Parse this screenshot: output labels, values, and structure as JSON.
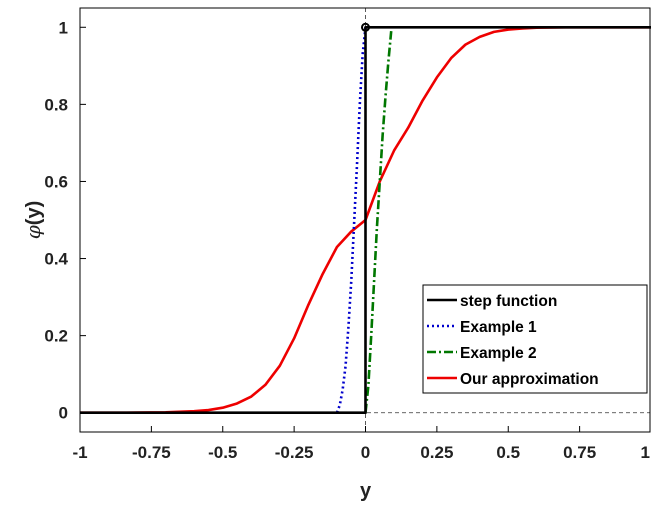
{
  "chart_data": {
    "type": "line",
    "xlabel": "y",
    "ylabel_symbol": "φ",
    "ylabel_arg": "(y)",
    "xlim": [
      -1,
      1
    ],
    "ylim": [
      -0.05,
      1.05
    ],
    "x_ticks": [
      -1,
      -0.75,
      -0.5,
      -0.25,
      0,
      0.25,
      0.5,
      0.75,
      1
    ],
    "x_tick_labels": [
      "-1",
      "-0.75",
      "-0.5",
      "-0.25",
      "0",
      "0.25",
      "0.5",
      "0.75",
      "1"
    ],
    "y_ticks": [
      0,
      0.2,
      0.4,
      0.6,
      0.8,
      1
    ],
    "y_tick_labels": [
      "0",
      "0.2",
      "0.4",
      "0.6",
      "0.8",
      "1"
    ],
    "grid": false,
    "legend_position": "bottom-right",
    "reference_lines": [
      {
        "orientation": "vertical",
        "value": 0,
        "style": "dashed",
        "color": "#333333"
      },
      {
        "orientation": "horizontal",
        "value": 0,
        "style": "dashed",
        "color": "#333333"
      }
    ],
    "series": [
      {
        "name": "step function",
        "color": "#000000",
        "style": "solid",
        "x": [
          -1,
          0,
          0,
          1
        ],
        "y": [
          0,
          0,
          1,
          1
        ],
        "marker_points": [
          {
            "x": 0,
            "y": 1
          }
        ]
      },
      {
        "name": "Example 1",
        "color": "#0000cc",
        "style": "dotted",
        "x": [
          -0.1,
          -0.09,
          -0.08,
          -0.07,
          -0.06,
          -0.05,
          -0.04,
          -0.03,
          -0.02,
          -0.01,
          0
        ],
        "y": [
          0,
          0.02,
          0.06,
          0.12,
          0.22,
          0.34,
          0.49,
          0.64,
          0.8,
          0.93,
          1
        ]
      },
      {
        "name": "Example 2",
        "color": "#007700",
        "style": "dashdot",
        "x": [
          0,
          0.01,
          0.02,
          0.03,
          0.04,
          0.05,
          0.06,
          0.07,
          0.08,
          0.09
        ],
        "y": [
          0,
          0.07,
          0.2,
          0.34,
          0.48,
          0.6,
          0.72,
          0.82,
          0.91,
          0.99
        ]
      },
      {
        "name": "Our approximation",
        "color": "#ee0000",
        "style": "solid",
        "x": [
          -1,
          -0.9,
          -0.8,
          -0.7,
          -0.6,
          -0.55,
          -0.5,
          -0.45,
          -0.4,
          -0.35,
          -0.3,
          -0.25,
          -0.2,
          -0.15,
          -0.1,
          -0.05,
          0,
          0.05,
          0.1,
          0.15,
          0.2,
          0.25,
          0.3,
          0.35,
          0.4,
          0.45,
          0.5,
          0.55,
          0.6,
          0.7,
          0.8,
          0.9,
          1
        ],
        "y": [
          0,
          0,
          0.0003,
          0.001,
          0.004,
          0.007,
          0.013,
          0.024,
          0.042,
          0.073,
          0.122,
          0.193,
          0.28,
          0.36,
          0.43,
          0.47,
          0.5,
          0.6,
          0.68,
          0.74,
          0.81,
          0.87,
          0.92,
          0.955,
          0.975,
          0.988,
          0.994,
          0.997,
          0.999,
          1,
          1,
          1,
          1
        ]
      }
    ]
  }
}
